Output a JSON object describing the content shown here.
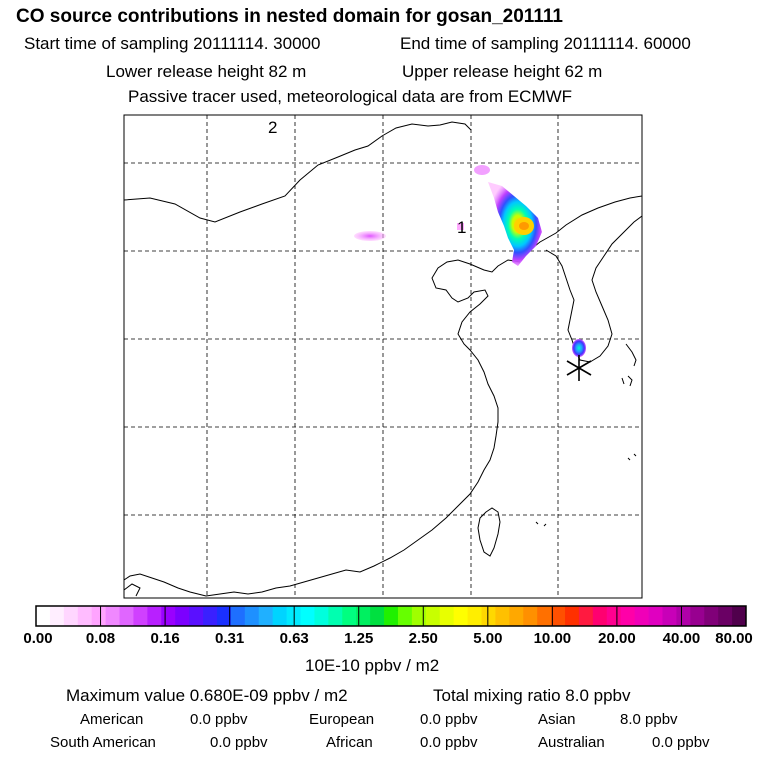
{
  "header": {
    "title": "CO  source contributions in nested domain for gosan_201111",
    "start_label": "Start time of sampling 20111114. 30000",
    "end_label": "End time of sampling 20111114. 60000",
    "lower_height": "Lower release height   82 m",
    "upper_height": "Upper release height   62 m",
    "tracer_note": "Passive tracer used, meteorological data are from ECMWF"
  },
  "map": {
    "markers": [
      "2",
      "1"
    ],
    "receptor_symbol": "*"
  },
  "colorbar": {
    "colors": [
      "#ffffff",
      "#ffeeff",
      "#ffd6ff",
      "#ffbcff",
      "#ffa4ff",
      "#f088ff",
      "#e066ff",
      "#d040ff",
      "#b820ff",
      "#9a00ff",
      "#7c00ff",
      "#5a10ff",
      "#3a20ff",
      "#1a30ff",
      "#1e6fff",
      "#1e90ff",
      "#20b0ff",
      "#00d4ff",
      "#00eaff",
      "#00ffff",
      "#00ffdd",
      "#00ffb0",
      "#00ff80",
      "#00f060",
      "#00e040",
      "#20f000",
      "#66ff00",
      "#a0ff00",
      "#c8ff00",
      "#e8ff00",
      "#ffff00",
      "#ffee00",
      "#ffd800",
      "#ffc000",
      "#ffa800",
      "#ff9000",
      "#ff7000",
      "#ff5000",
      "#ff3000",
      "#ff1a40",
      "#ff0070",
      "#ff0090",
      "#ff00a8",
      "#f000b8",
      "#e000c0",
      "#c800b8",
      "#b000a8",
      "#980090",
      "#800078",
      "#6a0064",
      "#50004c"
    ],
    "labels": [
      "0.00",
      "0.08",
      "0.16",
      "0.31",
      "0.63",
      "1.25",
      "2.50",
      "5.00",
      "10.00",
      "20.00",
      "40.00",
      "80.00"
    ],
    "units": "10E-10 ppbv / m2"
  },
  "footer": {
    "max_label": "Maximum value  0.680E-09 ppbv / m2",
    "total_label": "Total mixing ratio        8.0 ppbv",
    "regions": [
      {
        "name": "American",
        "value": "0.0 ppbv"
      },
      {
        "name": "European",
        "value": "0.0 ppbv"
      },
      {
        "name": "Asian",
        "value": "8.0 ppbv"
      },
      {
        "name": "South American",
        "value": "0.0 ppbv"
      },
      {
        "name": "African",
        "value": "0.0 ppbv"
      },
      {
        "name": "Australian",
        "value": "0.0 ppbv"
      }
    ]
  }
}
